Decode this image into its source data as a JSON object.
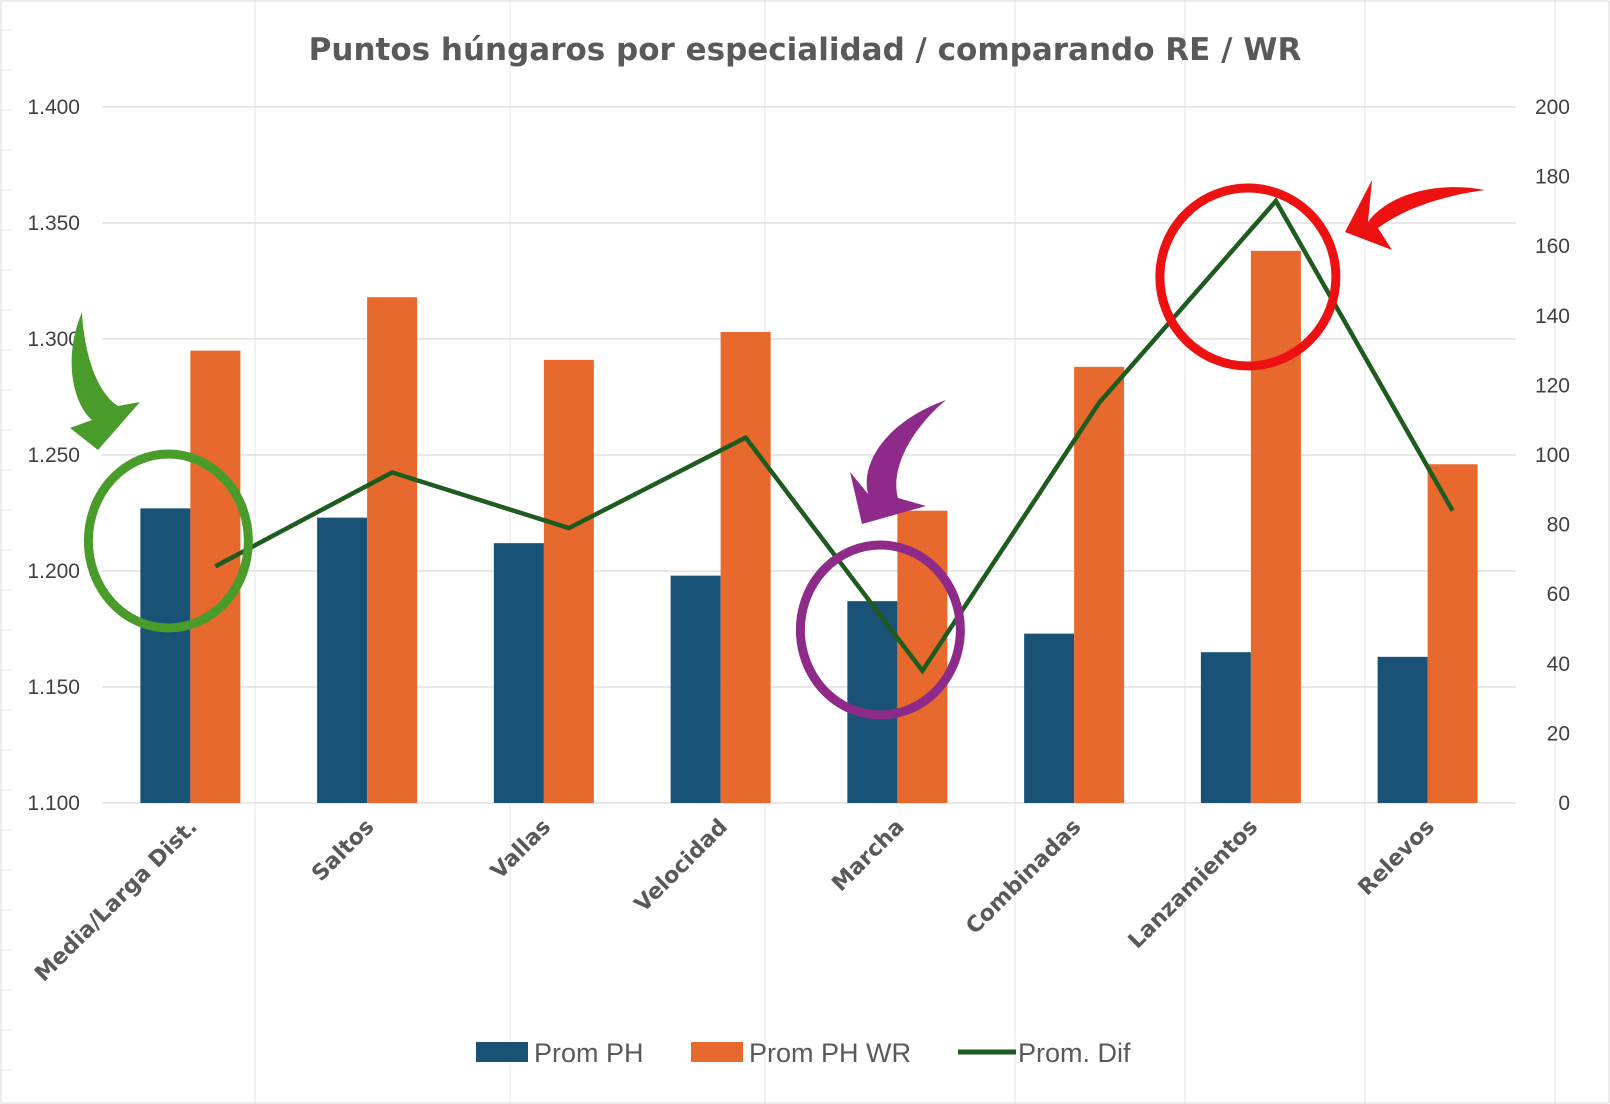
{
  "chart_data": {
    "type": "bar",
    "title": "Puntos húngaros por especialidad / comparando RE / WR",
    "categories": [
      "Media/Larga Dist.",
      "Saltos",
      "Vallas",
      "Velocidad",
      "Marcha",
      "Combinadas",
      "Lanzamientos",
      "Relevos"
    ],
    "series": [
      {
        "name": "Prom PH",
        "type": "bar",
        "axis": "left",
        "color": "#1a5276",
        "values": [
          1227,
          1223,
          1212,
          1198,
          1187,
          1173,
          1165,
          1163
        ]
      },
      {
        "name": "Prom PH WR",
        "type": "bar",
        "axis": "left",
        "color": "#e8692e",
        "values": [
          1295,
          1318,
          1291,
          1303,
          1226,
          1288,
          1338,
          1246
        ]
      },
      {
        "name": "Prom. Dif",
        "type": "line",
        "axis": "right",
        "color": "#1e5b1e",
        "values": [
          68,
          95,
          79,
          105,
          38,
          115,
          173,
          84
        ]
      }
    ],
    "y_left": {
      "min": 1100,
      "max": 1400,
      "step": 50,
      "tick_labels": [
        "1.100",
        "1.150",
        "1.200",
        "1.250",
        "1.300",
        "1.350",
        "1.400"
      ]
    },
    "y_right": {
      "min": 0,
      "max": 200,
      "step": 20,
      "tick_labels": [
        "0",
        "20",
        "40",
        "60",
        "80",
        "100",
        "120",
        "140",
        "160",
        "180",
        "200"
      ]
    },
    "grid": true,
    "legend_position": "bottom",
    "annotations": [
      {
        "shape": "circle",
        "color": "#4a9c2a",
        "category": "Media/Larga Dist.",
        "arrow": "curved",
        "arrow_color": "#4a9c2a"
      },
      {
        "shape": "circle",
        "color": "#8e2a8a",
        "category": "Marcha",
        "arrow": "curved",
        "arrow_color": "#8e2a8a"
      },
      {
        "shape": "circle",
        "color": "#ee1111",
        "category": "Lanzamientos",
        "arrow": "curved",
        "arrow_color": "#ee1111"
      }
    ]
  }
}
